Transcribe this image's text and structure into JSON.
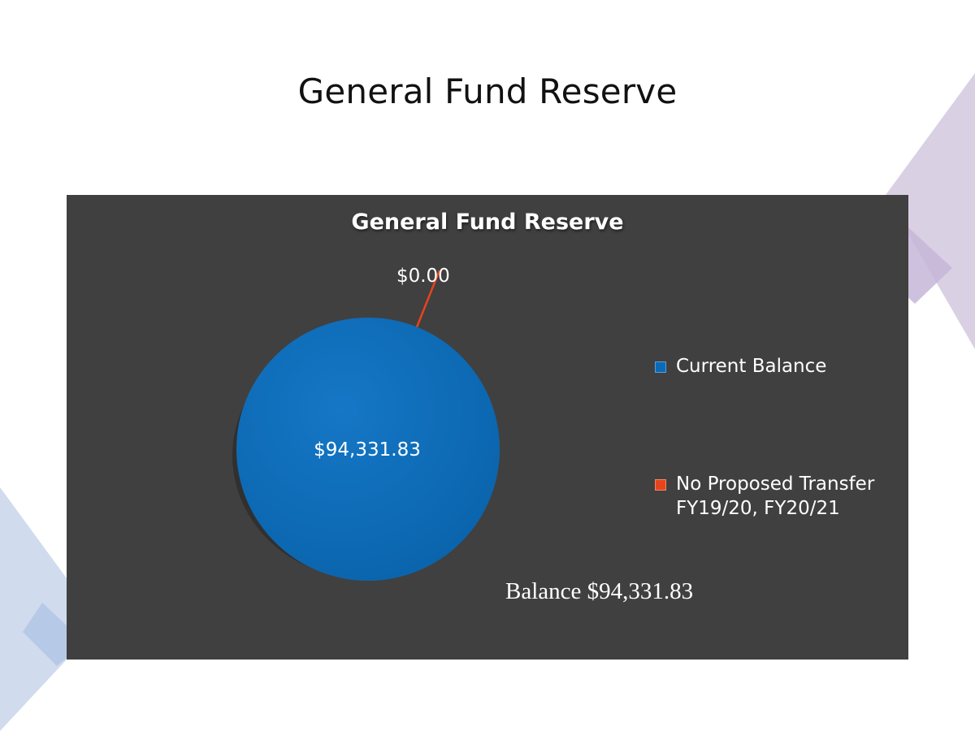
{
  "slide": {
    "title": "General Fund Reserve"
  },
  "chart_data": {
    "type": "pie",
    "title": "General Fund Reserve",
    "categories": [
      "Current Balance",
      "No Proposed Transfer FY19/20, FY20/21"
    ],
    "values": [
      94331.83,
      0.0
    ],
    "data_labels": [
      "$94,331.83",
      "$0.00"
    ],
    "colors": [
      "#0a6ab8",
      "#e8441c"
    ],
    "legend_position": "right",
    "legend": [
      {
        "label": "Current Balance",
        "color": "#0a6ab8"
      },
      {
        "label": "No Proposed Transfer FY19/20, FY20/21",
        "color": "#e8441c"
      }
    ],
    "annotation": "Balance $94,331.83"
  },
  "theme": {
    "panel_background": "#404040",
    "decor_purple": "#d9cfe3",
    "decor_blue": "#cdd9ec"
  }
}
